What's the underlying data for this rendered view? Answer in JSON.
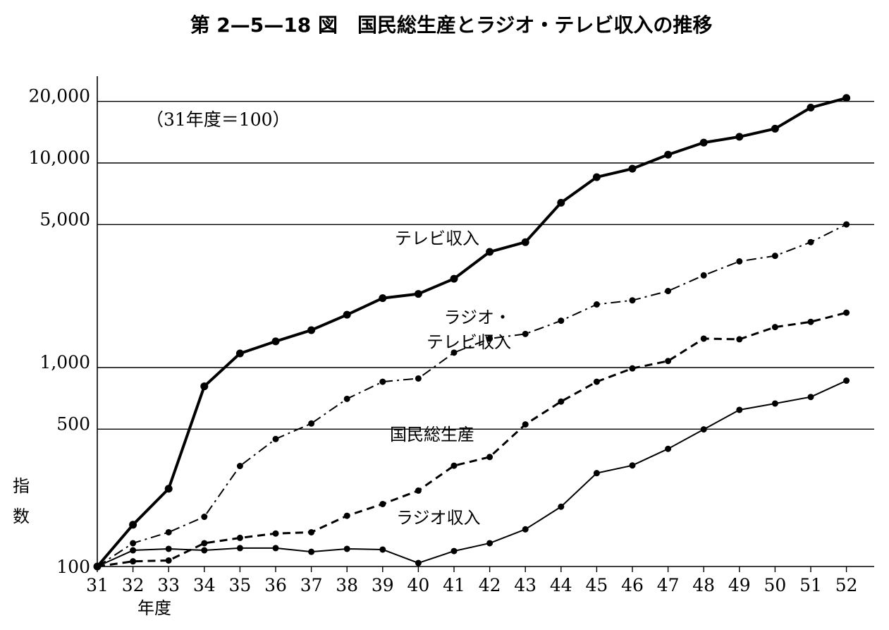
{
  "chart_data": {
    "type": "line",
    "title": "第 2—5—18 図　国民総生産とラジオ・テレビ収入の推移",
    "note": "（31年度＝100）",
    "xlabel": "年度",
    "ylabel": [
      "指",
      "数"
    ],
    "y_scale": "log",
    "ylim": [
      100,
      20000
    ],
    "grid": "horizontal",
    "categories": [
      "31",
      "32",
      "33",
      "34",
      "35",
      "36",
      "37",
      "38",
      "39",
      "40",
      "41",
      "42",
      "43",
      "44",
      "45",
      "46",
      "47",
      "48",
      "49",
      "50",
      "51",
      "52"
    ],
    "y_ticks": [
      {
        "value": 100,
        "label": "100"
      },
      {
        "value": 500,
        "label": "500"
      },
      {
        "value": 1000,
        "label": "1,000"
      },
      {
        "value": 5000,
        "label": "5,000"
      },
      {
        "value": 10000,
        "label": "10,000"
      },
      {
        "value": 20000,
        "label": "20,000"
      }
    ],
    "series": [
      {
        "name": "テレビ収入",
        "style": "solid-thick",
        "values": [
          100,
          160,
          240,
          760,
          1100,
          1260,
          1430,
          1700,
          2050,
          2150,
          2550,
          3450,
          3850,
          6000,
          8000,
          8800,
          10300,
          11800,
          12600,
          13800,
          17500,
          19500
        ]
      },
      {
        "name": "ラジオ・\nテレビ収入",
        "style": "dash-dot",
        "values": [
          100,
          130,
          147,
          175,
          310,
          420,
          500,
          660,
          800,
          830,
          1110,
          1300,
          1370,
          1590,
          1910,
          2000,
          2220,
          2650,
          3100,
          3300,
          3850,
          4700
        ]
      },
      {
        "name": "国民総生産",
        "style": "dashed",
        "values": [
          100,
          106,
          107,
          130,
          138,
          145,
          147,
          177,
          202,
          235,
          311,
          343,
          495,
          640,
          800,
          930,
          1010,
          1300,
          1290,
          1480,
          1570,
          1740
        ]
      },
      {
        "name": "ラジオ収入",
        "style": "solid-thin",
        "values": [
          100,
          120,
          122,
          120,
          123,
          123,
          118,
          122,
          121,
          104,
          119,
          130,
          152,
          196,
          286,
          312,
          376,
          468,
          583,
          626,
          674,
          810
        ]
      }
    ]
  },
  "colors": {
    "ink": "#000000",
    "paper": "#ffffff"
  }
}
